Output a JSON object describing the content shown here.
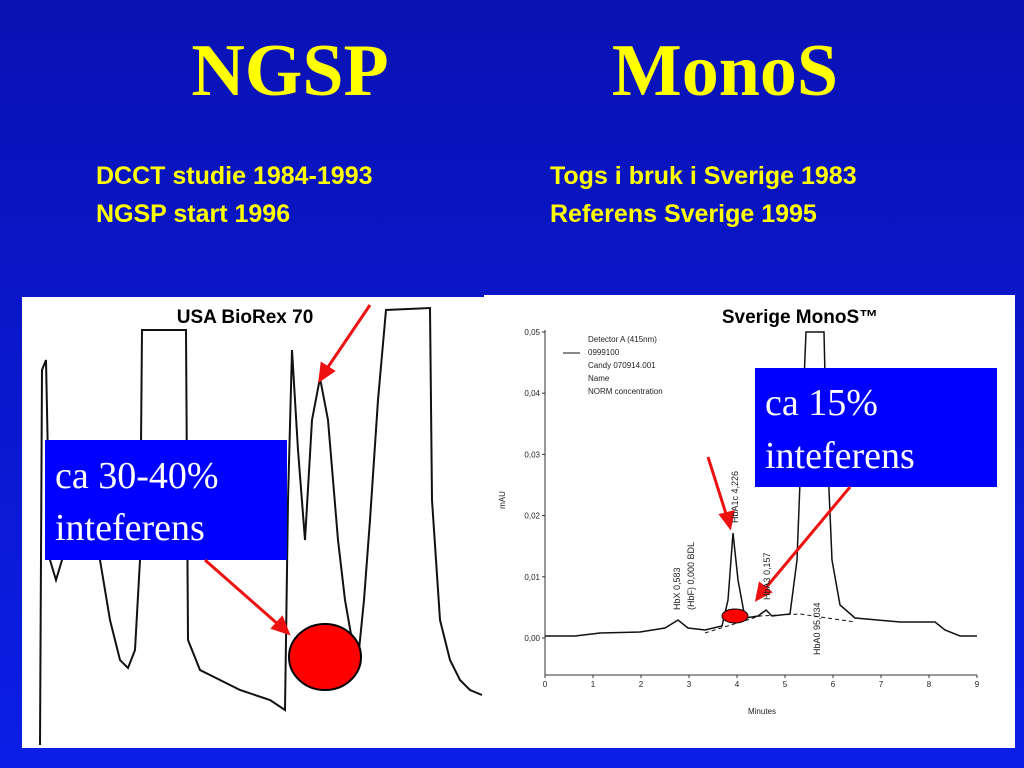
{
  "title": {
    "left": "NGSP",
    "right": "MonoS"
  },
  "left": {
    "lines": [
      "DCCT studie 1984-1993",
      "NGSP start 1996"
    ],
    "figure": {
      "caption": "USA BioRex 70",
      "callout": [
        "ca 30-40%",
        "inteferens"
      ]
    }
  },
  "right": {
    "lines": [
      "Togs i bruk i Sverige 1983",
      "Referens Sverige 1995"
    ],
    "figure": {
      "caption": "Sverige MonoS™",
      "callout": [
        "ca 15%",
        "inteferens"
      ],
      "y_axis_label": "mAU",
      "x_axis_label": "Minutes",
      "yticks": [
        "0,05",
        "0,04",
        "0,03",
        "0,02",
        "0,01",
        "0,00"
      ],
      "xticks": [
        0,
        1,
        2,
        3,
        4,
        5,
        6,
        7,
        8,
        9
      ],
      "legend": [
        "Detector A (415nm)",
        "0999100",
        "Candy 070914.001",
        "Name",
        "NORM concentration"
      ],
      "peaks": [
        "HbX  0,583",
        "(HbF)  0,000 BDL",
        "HbA1c  4,226",
        "HbA3  0,157",
        "HbA0  95,034"
      ]
    }
  }
}
